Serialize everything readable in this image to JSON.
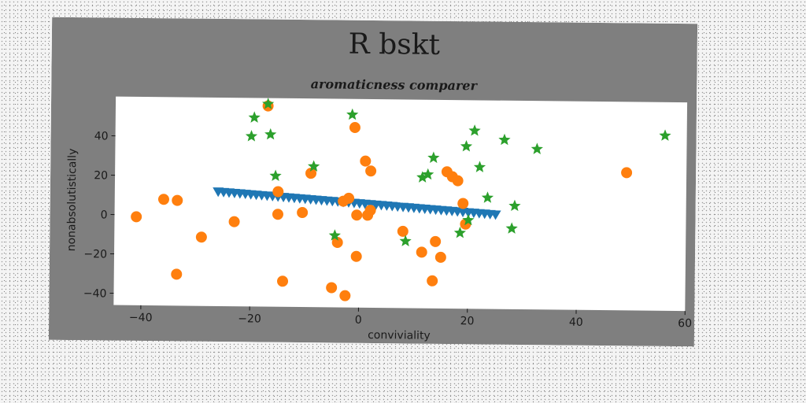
{
  "chart_data": {
    "type": "scatter",
    "title": "R bskt",
    "subtitle": "aromaticness comparer",
    "xlabel": "conviviality",
    "ylabel": "nonabsolutistically",
    "xlim": [
      -45,
      60
    ],
    "ylim": [
      -46,
      60
    ],
    "xticks": [
      -40,
      -20,
      0,
      20,
      40,
      60
    ],
    "yticks": [
      -40,
      -20,
      0,
      20,
      40
    ],
    "grid": false,
    "legend": "none",
    "series": [
      {
        "marker": "triangle-down",
        "color": "#1f77b4",
        "points": [
          [
            -26,
            11.9
          ],
          [
            -25,
            11.7
          ],
          [
            -24,
            11.5
          ],
          [
            -23,
            11.3
          ],
          [
            -22,
            11.1
          ],
          [
            -21,
            10.9
          ],
          [
            -20,
            10.7
          ],
          [
            -19,
            10.5
          ],
          [
            -18,
            10.3
          ],
          [
            -17,
            10.1
          ],
          [
            -16,
            9.9
          ],
          [
            -15,
            9.7
          ],
          [
            -14,
            9.5
          ],
          [
            -13,
            9.3
          ],
          [
            -12,
            9.1
          ],
          [
            -11,
            8.9
          ],
          [
            -10,
            8.7
          ],
          [
            -9,
            8.5
          ],
          [
            -8,
            8.3
          ],
          [
            -7,
            8.1
          ],
          [
            -6,
            7.9
          ],
          [
            -5,
            7.7
          ],
          [
            -4,
            7.5
          ],
          [
            -3,
            7.3
          ],
          [
            -2,
            7.1
          ],
          [
            -1,
            6.9
          ],
          [
            0,
            6.7
          ],
          [
            1,
            6.5
          ],
          [
            2,
            6.3
          ],
          [
            3,
            6.1
          ],
          [
            4,
            5.9
          ],
          [
            5,
            5.7
          ],
          [
            6,
            5.5
          ],
          [
            7,
            5.3
          ],
          [
            8,
            5.1
          ],
          [
            9,
            4.9
          ],
          [
            10,
            4.7
          ],
          [
            11,
            4.5
          ],
          [
            12,
            4.3
          ],
          [
            13,
            4.1
          ],
          [
            14,
            3.9
          ],
          [
            15,
            3.7
          ],
          [
            16,
            3.5
          ],
          [
            17,
            3.3
          ],
          [
            18,
            3.1
          ],
          [
            19,
            2.9
          ],
          [
            20,
            2.7
          ],
          [
            21,
            2.5
          ],
          [
            22,
            2.3
          ],
          [
            23,
            2.1
          ],
          [
            24,
            1.9
          ],
          [
            25,
            1.7
          ]
        ]
      },
      {
        "marker": "circle",
        "color": "#ff7f0e",
        "points": [
          [
            -41,
            -1
          ],
          [
            -36,
            8
          ],
          [
            -33.5,
            7.5
          ],
          [
            -29,
            -11
          ],
          [
            -33.5,
            -30
          ],
          [
            -23,
            -3
          ],
          [
            -17,
            56
          ],
          [
            -15,
            12.5
          ],
          [
            -15,
            1
          ],
          [
            -14,
            -33
          ],
          [
            -10.5,
            2
          ],
          [
            -9,
            22
          ],
          [
            -5,
            -36
          ],
          [
            -4,
            -13
          ],
          [
            -3,
            8
          ],
          [
            -2.5,
            -40
          ],
          [
            -2,
            9.5
          ],
          [
            -1,
            45.5
          ],
          [
            -0.5,
            -20
          ],
          [
            -0.5,
            1
          ],
          [
            1,
            28.5
          ],
          [
            1.5,
            1
          ],
          [
            2,
            3.5
          ],
          [
            2,
            23.5
          ],
          [
            8,
            -7
          ],
          [
            11.5,
            -17.5
          ],
          [
            13.5,
            -32
          ],
          [
            14,
            -12
          ],
          [
            15,
            -20
          ],
          [
            16,
            23.5
          ],
          [
            17,
            21
          ],
          [
            18,
            19
          ],
          [
            19,
            7.5
          ],
          [
            19.5,
            -3
          ],
          [
            49,
            24
          ]
        ]
      },
      {
        "marker": "star",
        "color": "#2ca02c",
        "points": [
          [
            -17,
            57
          ],
          [
            -19.5,
            50
          ],
          [
            -20,
            40.5
          ],
          [
            -16.5,
            41.5
          ],
          [
            -15.5,
            20.5
          ],
          [
            -8.5,
            25.5
          ],
          [
            -4.5,
            -9.5
          ],
          [
            -1.5,
            52
          ],
          [
            8.5,
            -12
          ],
          [
            11.5,
            20.5
          ],
          [
            12.5,
            22
          ],
          [
            13.5,
            30.5
          ],
          [
            18.5,
            -7.5
          ],
          [
            19.5,
            36.5
          ],
          [
            20,
            -1
          ],
          [
            21,
            44.5
          ],
          [
            22,
            26
          ],
          [
            23.5,
            10.5
          ],
          [
            26.5,
            40
          ],
          [
            28,
            -5
          ],
          [
            28.5,
            6.5
          ],
          [
            32.5,
            35.5
          ],
          [
            56,
            43
          ]
        ]
      }
    ]
  }
}
